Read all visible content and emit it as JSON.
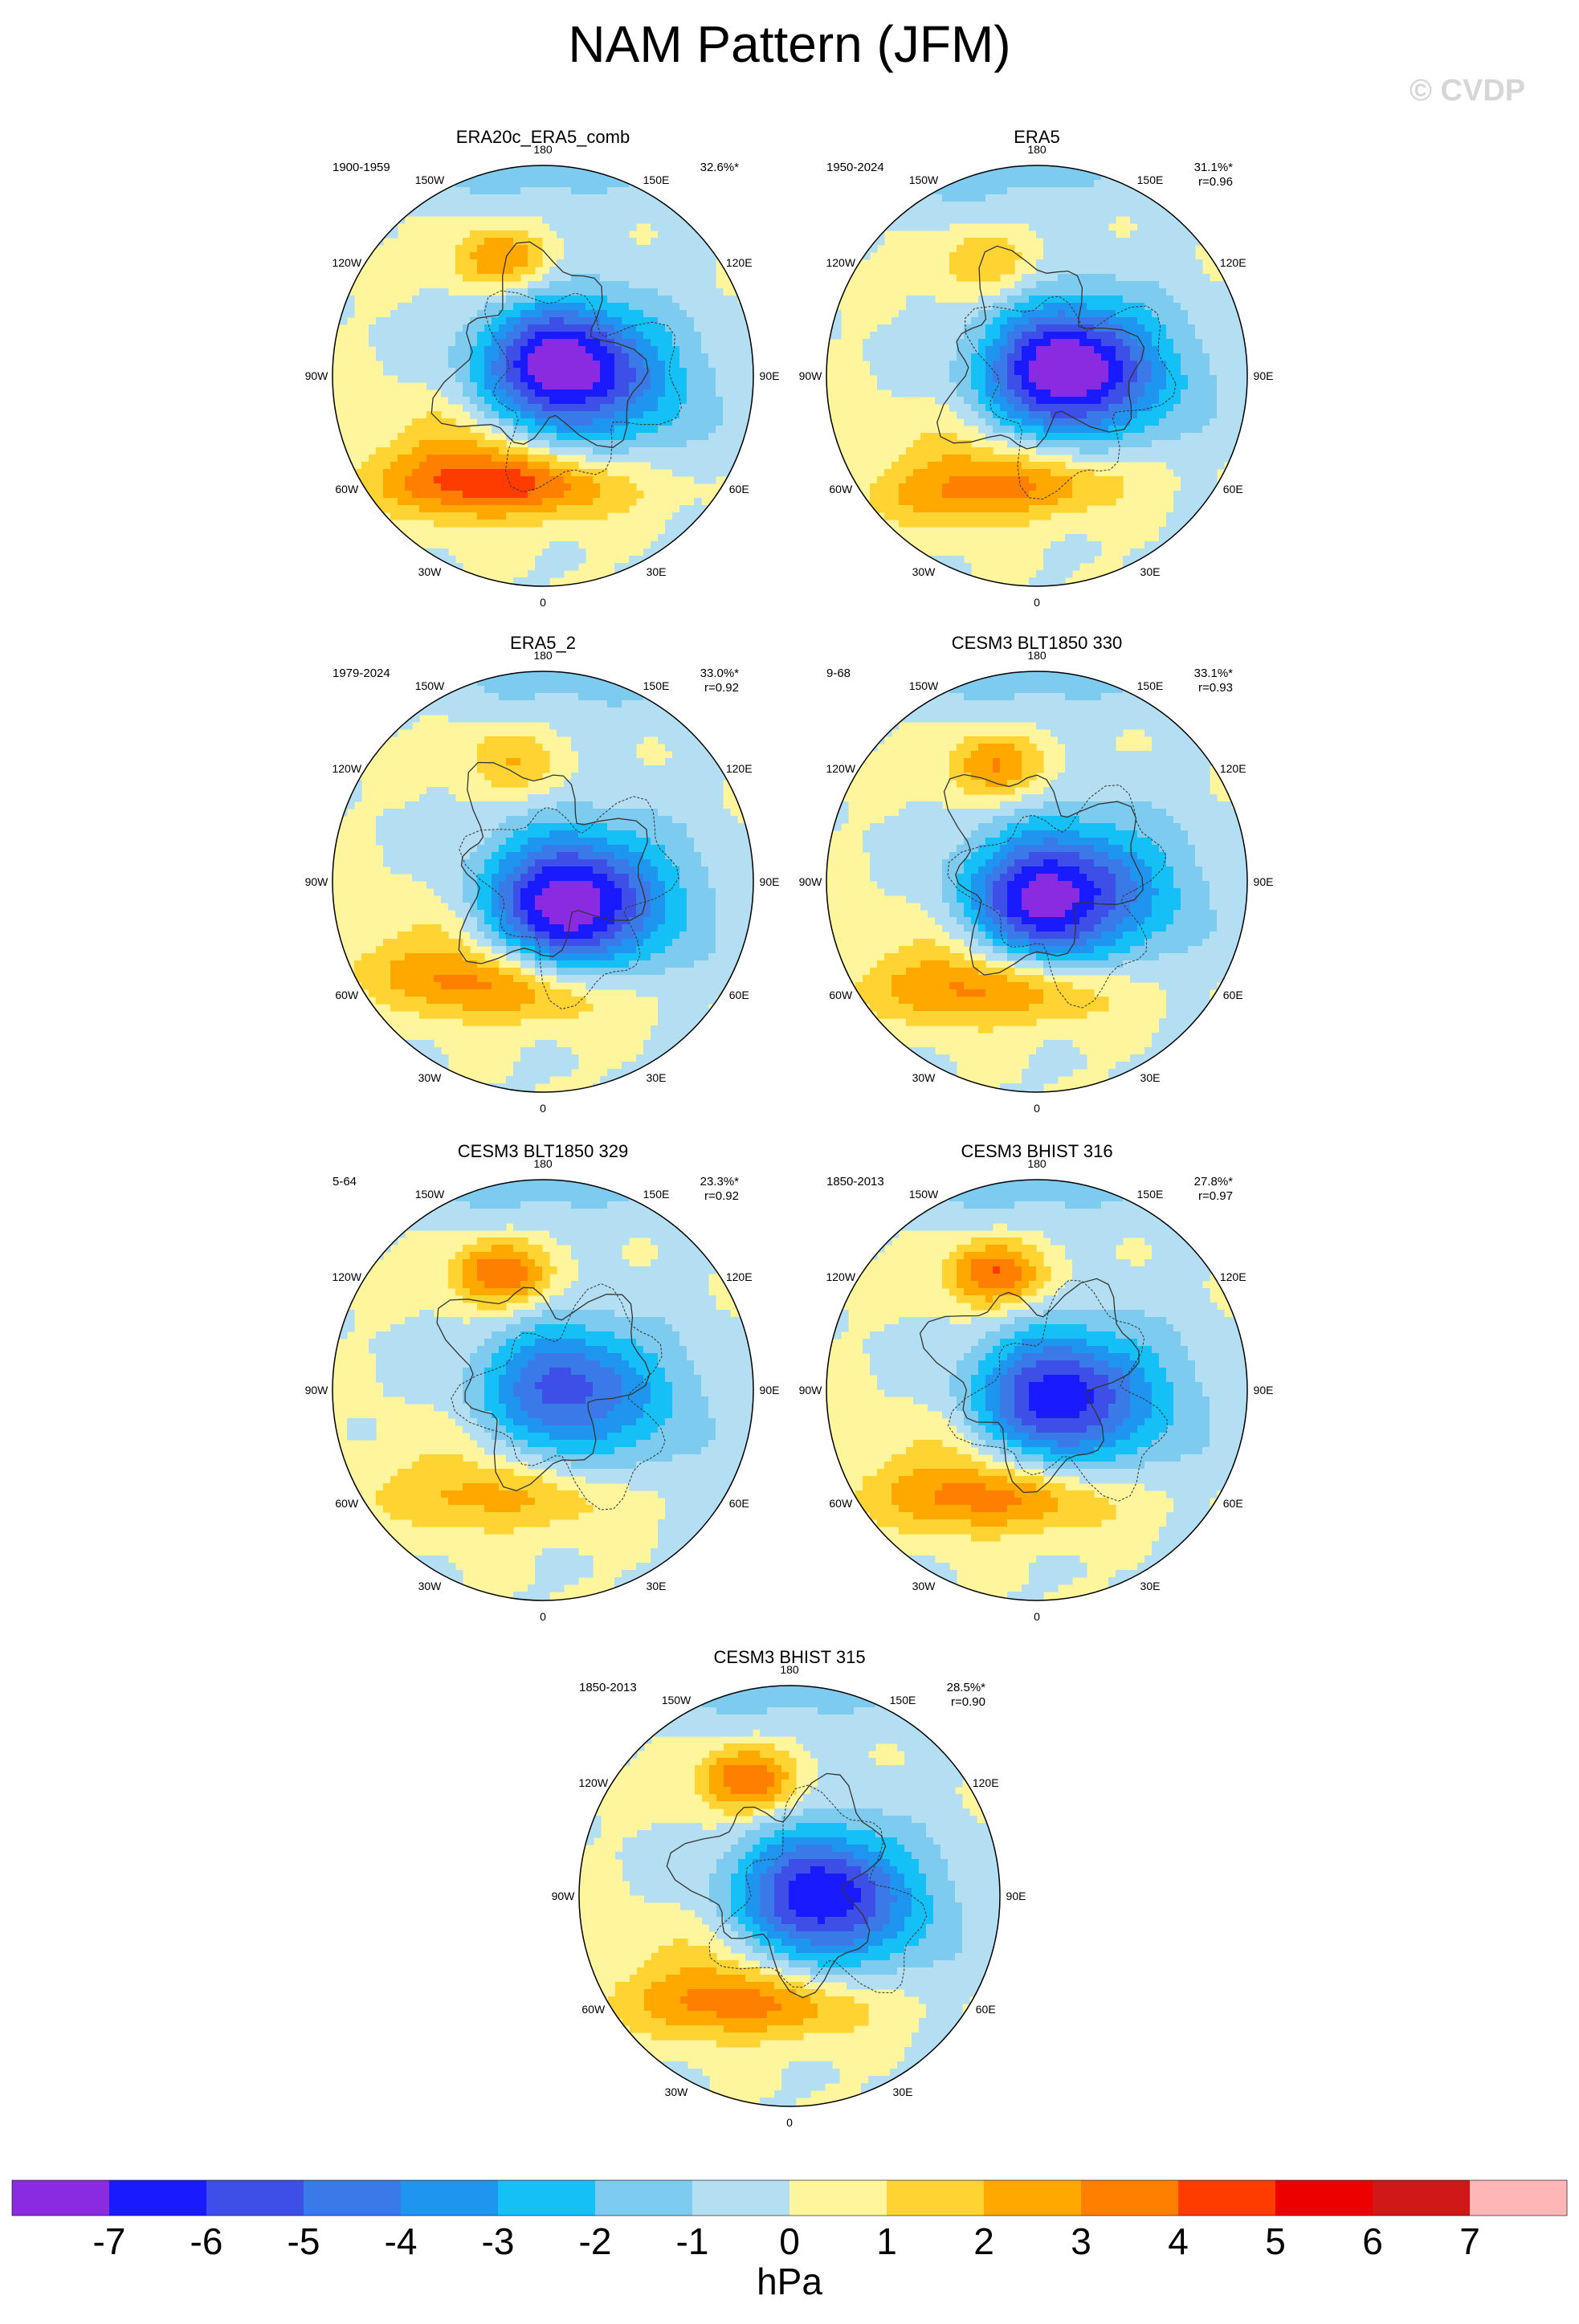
{
  "title": "NAM Pattern (JFM)",
  "watermark": "© CVDP",
  "colors": {
    "contours": [
      "#8a2be2",
      "#1a1aff",
      "#3d4fe6",
      "#3a7ae8",
      "#1e96f0",
      "#14c0f5",
      "#7ecbf0",
      "#b4def2",
      "#fff59c",
      "#ffd432",
      "#ffa800",
      "#ff7f00",
      "#ff3c00",
      "#ec0000",
      "#d01818",
      "#ffb6b6"
    ],
    "coastline": "#333333"
  },
  "chart_data": {
    "type": "heatmap",
    "projection": "polar-stereographic (Northern Hemisphere)",
    "units": "hPa",
    "longitude_labels": [
      "180",
      "150E",
      "120E",
      "90E",
      "60E",
      "30E",
      "0",
      "30W",
      "60W",
      "90W",
      "120W",
      "150W"
    ],
    "colorbar": {
      "ticks": [
        "-7",
        "-6",
        "-5",
        "-4",
        "-3",
        "-2",
        "-1",
        "0",
        "1",
        "2",
        "3",
        "4",
        "5",
        "6",
        "7"
      ],
      "unit": "hPa"
    },
    "panels": [
      {
        "title": "ERA20c_ERA5_comb",
        "period": "1900-1959",
        "pct_variance": "32.6%*",
        "pattern_corr": "",
        "pattern": {
          "rot": 0,
          "posPac": 3,
          "posAtl": 4,
          "negMin": -6,
          "negBlob": [
            0.05,
            -0.05
          ]
        }
      },
      {
        "title": "ERA5",
        "period": "1950-2024",
        "pct_variance": "31.1%*",
        "pattern_corr": "r=0.96",
        "pattern": {
          "rot": 5,
          "posPac": 2,
          "posAtl": 3,
          "negMin": -6,
          "negBlob": [
            0.1,
            -0.02
          ]
        }
      },
      {
        "title": "ERA5_2",
        "period": "1979-2024",
        "pct_variance": "33.0%*",
        "pattern_corr": "r=0.92",
        "pattern": {
          "rot": -5,
          "posPac": 2,
          "posAtl": 3,
          "negMin": -6,
          "negBlob": [
            0.08,
            0.12
          ]
        }
      },
      {
        "title": "CESM3 BLT1850 330",
        "period": "9-68",
        "pct_variance": "33.1%*",
        "pattern_corr": "r=0.93",
        "pattern": {
          "rot": 0,
          "posPac": 3,
          "posAtl": 3,
          "negMin": -6,
          "negBlob": [
            0.0,
            0.1
          ]
        }
      },
      {
        "title": "CESM3 BLT1850 329",
        "period": "5-64",
        "pct_variance": "23.3%*",
        "pattern_corr": "r=0.92",
        "pattern": {
          "rot": 0,
          "posPac": 4,
          "posAtl": 2,
          "negMin": -4,
          "negBlob": [
            0.05,
            0.0
          ]
        }
      },
      {
        "title": "CESM3 BHIST 316",
        "period": "1850-2013",
        "pct_variance": "27.8%*",
        "pattern_corr": "r=0.97",
        "pattern": {
          "rot": 0,
          "posPac": 4,
          "posAtl": 3,
          "negMin": -5,
          "negBlob": [
            0.05,
            0.05
          ]
        }
      },
      {
        "title": "CESM3 BHIST 315",
        "period": "1850-2013",
        "pct_variance": "28.5%*",
        "pattern_corr": "r=0.90",
        "pattern": {
          "rot": 0,
          "posPac": 4,
          "posAtl": 3,
          "negMin": -5,
          "negBlob": [
            0.1,
            0.0
          ]
        }
      }
    ]
  }
}
